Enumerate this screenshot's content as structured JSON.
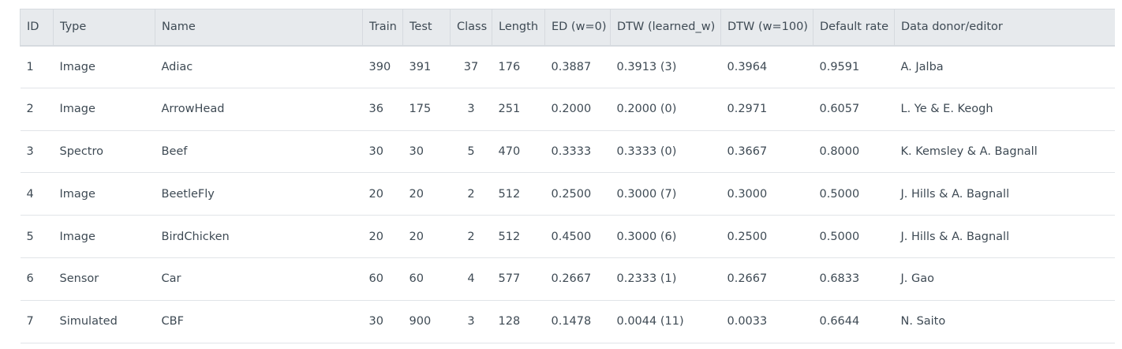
{
  "table": {
    "columns": [
      "ID",
      "Type",
      "Name",
      "Train",
      "Test",
      "Class",
      "Length",
      "ED (w=0)",
      "DTW (learned_w)",
      "DTW (w=100)",
      "Default rate",
      "Data donor/editor"
    ],
    "rows": [
      [
        "1",
        "Image",
        "Adiac",
        "390",
        "391",
        "37",
        "176",
        "0.3887",
        "0.3913 (3)",
        "0.3964",
        "0.9591",
        "A. Jalba"
      ],
      [
        "2",
        "Image",
        "ArrowHead",
        "36",
        "175",
        "3",
        "251",
        "0.2000",
        "0.2000 (0)",
        "0.2971",
        "0.6057",
        "L. Ye & E. Keogh"
      ],
      [
        "3",
        "Spectro",
        "Beef",
        "30",
        "30",
        "5",
        "470",
        "0.3333",
        "0.3333 (0)",
        "0.3667",
        "0.8000",
        "K. Kemsley & A. Bagnall"
      ],
      [
        "4",
        "Image",
        "BeetleFly",
        "20",
        "20",
        "2",
        "512",
        "0.2500",
        "0.3000 (7)",
        "0.3000",
        "0.5000",
        "J. Hills & A. Bagnall"
      ],
      [
        "5",
        "Image",
        "BirdChicken",
        "20",
        "20",
        "2",
        "512",
        "0.4500",
        "0.3000 (6)",
        "0.2500",
        "0.5000",
        "J. Hills & A. Bagnall"
      ],
      [
        "6",
        "Sensor",
        "Car",
        "60",
        "60",
        "4",
        "577",
        "0.2667",
        "0.2333 (1)",
        "0.2667",
        "0.6833",
        "J. Gao"
      ],
      [
        "7",
        "Simulated",
        "CBF",
        "30",
        "900",
        "3",
        "128",
        "0.1478",
        "0.0044 (11)",
        "0.0033",
        "0.6644",
        "N. Saito"
      ]
    ]
  },
  "colors": {
    "header_bg": "#e7eaed",
    "border": "#d6dadf",
    "text": "#3e4a54"
  }
}
